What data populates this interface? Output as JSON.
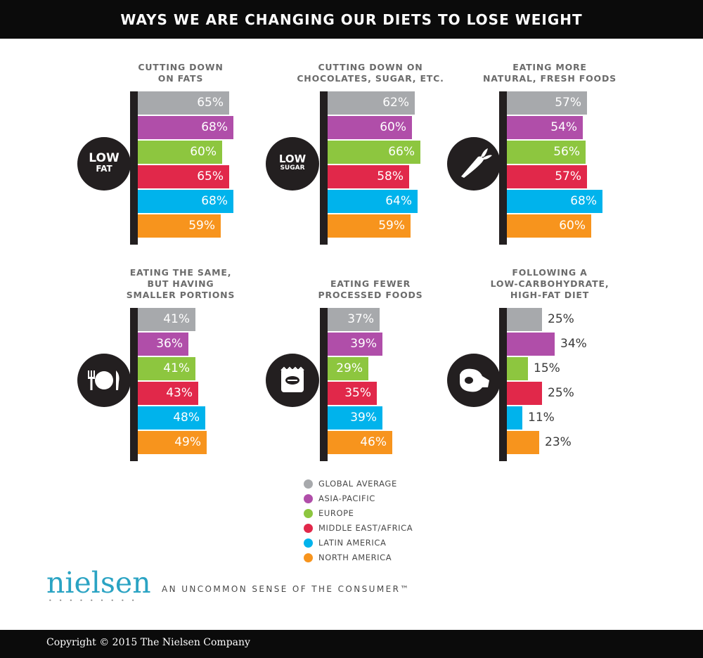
{
  "header": {
    "title": "WAYS WE ARE CHANGING OUR DIETS TO LOSE WEIGHT"
  },
  "colors": {
    "global_average": "#a7a9ac",
    "asia_pacific": "#b04ea9",
    "europe": "#8dc63f",
    "middle_east_africa": "#e1284a",
    "latin_america": "#00b3ec",
    "north_america": "#f7941d",
    "ink": "#231f20"
  },
  "chart_data": [
    {
      "type": "bar",
      "title": "CUTTING DOWN ON FATS",
      "title_lines": [
        "CUTTING DOWN",
        "ON FATS"
      ],
      "icon": "low-fat-icon",
      "icon_text": [
        "LOW",
        "FAT"
      ],
      "categories": [
        "GLOBAL AVERAGE",
        "ASIA-PACIFIC",
        "EUROPE",
        "MIDDLE EAST/AFRICA",
        "LATIN AMERICA",
        "NORTH AMERICA"
      ],
      "values": [
        65,
        68,
        60,
        65,
        68,
        59
      ],
      "labels": [
        "65%",
        "68%",
        "60%",
        "65%",
        "68%",
        "59%"
      ]
    },
    {
      "type": "bar",
      "title": "CUTTING DOWN ON CHOCOLATES, SUGAR, ETC.",
      "title_lines": [
        "CUTTING DOWN ON",
        "CHOCOLATES, SUGAR, ETC."
      ],
      "icon": "low-sugar-icon",
      "icon_text": [
        "LOW",
        "SUGAR"
      ],
      "categories": [
        "GLOBAL AVERAGE",
        "ASIA-PACIFIC",
        "EUROPE",
        "MIDDLE EAST/AFRICA",
        "LATIN AMERICA",
        "NORTH AMERICA"
      ],
      "values": [
        62,
        60,
        66,
        58,
        64,
        59
      ],
      "labels": [
        "62%",
        "60%",
        "66%",
        "58%",
        "64%",
        "59%"
      ]
    },
    {
      "type": "bar",
      "title": "EATING MORE NATURAL, FRESH FOODS",
      "title_lines": [
        "EATING MORE",
        "NATURAL, FRESH FOODS"
      ],
      "icon": "carrot-icon",
      "icon_text": [],
      "categories": [
        "GLOBAL AVERAGE",
        "ASIA-PACIFIC",
        "EUROPE",
        "MIDDLE EAST/AFRICA",
        "LATIN AMERICA",
        "NORTH AMERICA"
      ],
      "values": [
        57,
        54,
        56,
        57,
        68,
        60
      ],
      "labels": [
        "57%",
        "54%",
        "56%",
        "57%",
        "68%",
        "60%"
      ]
    },
    {
      "type": "bar",
      "title": "EATING THE SAME, BUT HAVING SMALLER PORTIONS",
      "title_lines": [
        "EATING THE SAME,",
        "BUT HAVING",
        "SMALLER PORTIONS"
      ],
      "icon": "plate-cutlery-icon",
      "icon_text": [],
      "categories": [
        "GLOBAL AVERAGE",
        "ASIA-PACIFIC",
        "EUROPE",
        "MIDDLE EAST/AFRICA",
        "LATIN AMERICA",
        "NORTH AMERICA"
      ],
      "values": [
        41,
        36,
        41,
        43,
        48,
        49
      ],
      "labels": [
        "41%",
        "36%",
        "41%",
        "43%",
        "48%",
        "49%"
      ]
    },
    {
      "type": "bar",
      "title": "EATING FEWER PROCESSED FOODS",
      "title_lines": [
        "EATING FEWER",
        "PROCESSED FOODS"
      ],
      "icon": "snack-bag-icon",
      "icon_text": [],
      "categories": [
        "GLOBAL AVERAGE",
        "ASIA-PACIFIC",
        "EUROPE",
        "MIDDLE EAST/AFRICA",
        "LATIN AMERICA",
        "NORTH AMERICA"
      ],
      "values": [
        37,
        39,
        29,
        35,
        39,
        46
      ],
      "labels": [
        "37%",
        "39%",
        "29%",
        "35%",
        "39%",
        "46%"
      ]
    },
    {
      "type": "bar",
      "title": "FOLLOWING A LOW-CARBOHYDRATE, HIGH-FAT DIET",
      "title_lines": [
        "FOLLOWING A",
        "LOW-CARBOHYDRATE,",
        "HIGH-FAT DIET"
      ],
      "icon": "meat-icon",
      "icon_text": [],
      "categories": [
        "GLOBAL AVERAGE",
        "ASIA-PACIFIC",
        "EUROPE",
        "MIDDLE EAST/AFRICA",
        "LATIN AMERICA",
        "NORTH AMERICA"
      ],
      "values": [
        25,
        34,
        15,
        25,
        11,
        23
      ],
      "labels": [
        "25%",
        "34%",
        "15%",
        "25%",
        "11%",
        "23%"
      ]
    }
  ],
  "legend": {
    "items": [
      {
        "label": "GLOBAL AVERAGE",
        "color": "#a7a9ac"
      },
      {
        "label": "ASIA-PACIFIC",
        "color": "#b04ea9"
      },
      {
        "label": "EUROPE",
        "color": "#8dc63f"
      },
      {
        "label": "MIDDLE EAST/AFRICA",
        "color": "#e1284a"
      },
      {
        "label": "LATIN AMERICA",
        "color": "#00b3ec"
      },
      {
        "label": "NORTH AMERICA",
        "color": "#f7941d"
      }
    ]
  },
  "brand": {
    "logo": "nielsen",
    "logo_dots": "•••••••••",
    "tagline": "AN UNCOMMON SENSE OF THE CONSUMER™"
  },
  "footer": {
    "copyright": "Copyright © 2015 The Nielsen Company"
  }
}
